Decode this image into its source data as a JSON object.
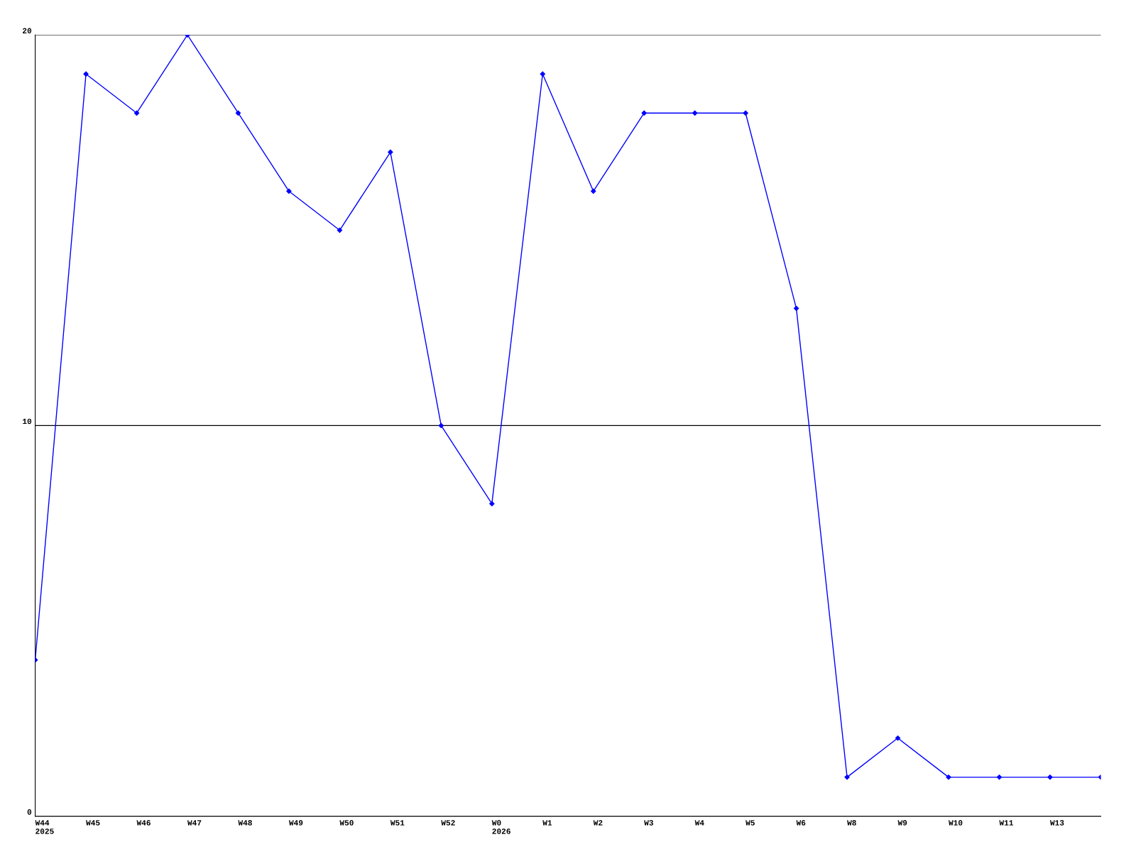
{
  "chart_data": {
    "type": "line",
    "categories": [
      "W44\n2025",
      "W45",
      "W46",
      "W47",
      "W48",
      "W49",
      "W50",
      "W51",
      "W52",
      "W0\n2026",
      "W1",
      "W2",
      "W3",
      "W4",
      "W5",
      "W6",
      "W8",
      "W9",
      "W10",
      "W11",
      "W13",
      null
    ],
    "series": [
      {
        "color": "#0000ff",
        "values": [
          4,
          19,
          18,
          20,
          18,
          16,
          15,
          17,
          10,
          8,
          19,
          16,
          18,
          18,
          18,
          13,
          1,
          2,
          1,
          1,
          1,
          1
        ]
      }
    ],
    "ylim": [
      0,
      20
    ],
    "yticks": [
      0,
      10,
      20
    ],
    "grid": "y",
    "marker": "diamond",
    "line_style": "solid"
  }
}
